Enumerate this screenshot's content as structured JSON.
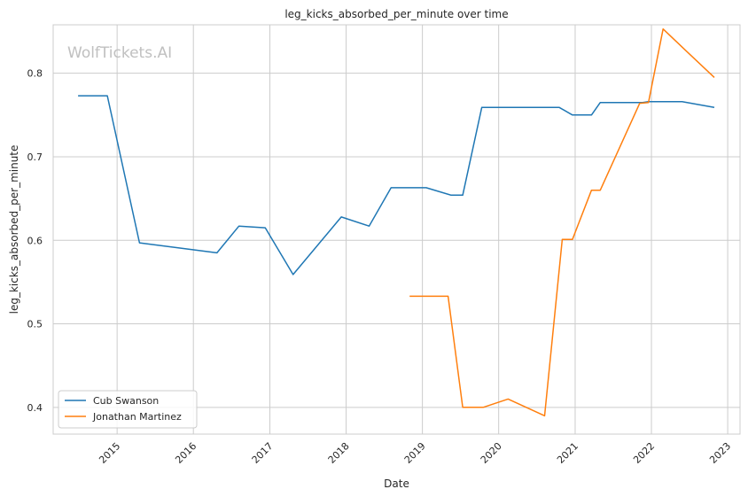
{
  "chart_data": {
    "type": "line",
    "title": "leg_kicks_absorbed_per_minute over time",
    "xlabel": "Date",
    "ylabel": "leg_kicks_absorbed_per_minute",
    "watermark": "WolfTickets.AI",
    "x_ticks": [
      "2015",
      "2016",
      "2017",
      "2018",
      "2019",
      "2020",
      "2021",
      "2022",
      "2023"
    ],
    "y_ticks": [
      "0.4",
      "0.5",
      "0.6",
      "0.7",
      "0.8"
    ],
    "xlim": [
      "2014-03-01",
      "2023-03-01"
    ],
    "ylim": [
      0.368,
      0.858
    ],
    "grid": true,
    "legend_position": "lower-left",
    "series": [
      {
        "name": "Cub Swanson",
        "color": "#1f77b4",
        "points": [
          [
            "2014-06-28",
            0.773
          ],
          [
            "2014-11-15",
            0.773
          ],
          [
            "2015-04-18",
            0.597
          ],
          [
            "2016-04-23",
            0.585
          ],
          [
            "2016-08-06",
            0.617
          ],
          [
            "2016-12-10",
            0.615
          ],
          [
            "2017-04-22",
            0.559
          ],
          [
            "2017-12-09",
            0.628
          ],
          [
            "2018-04-21",
            0.617
          ],
          [
            "2018-08-04",
            0.663
          ],
          [
            "2019-01-19",
            0.663
          ],
          [
            "2019-05-18",
            0.654
          ],
          [
            "2019-07-13",
            0.654
          ],
          [
            "2019-10-12",
            0.759
          ],
          [
            "2020-10-17",
            0.759
          ],
          [
            "2020-12-19",
            0.75
          ],
          [
            "2021-03-20",
            0.75
          ],
          [
            "2021-05-01",
            0.765
          ],
          [
            "2021-11-20",
            0.765
          ],
          [
            "2021-12-18",
            0.766
          ],
          [
            "2022-05-28",
            0.766
          ],
          [
            "2022-10-29",
            0.759
          ]
        ]
      },
      {
        "name": "Jonathan Martinez",
        "color": "#ff7f0e",
        "points": [
          [
            "2018-11-01",
            0.533
          ],
          [
            "2019-05-04",
            0.533
          ],
          [
            "2019-07-13",
            0.4
          ],
          [
            "2019-10-19",
            0.4
          ],
          [
            "2020-02-15",
            0.41
          ],
          [
            "2020-08-08",
            0.39
          ],
          [
            "2020-10-31",
            0.601
          ],
          [
            "2020-12-19",
            0.601
          ],
          [
            "2021-03-20",
            0.66
          ],
          [
            "2021-05-01",
            0.66
          ],
          [
            "2021-11-06",
            0.764
          ],
          [
            "2021-12-18",
            0.765
          ],
          [
            "2022-02-26",
            0.853
          ],
          [
            "2022-06-11",
            0.828
          ],
          [
            "2022-10-29",
            0.795
          ]
        ]
      }
    ]
  }
}
